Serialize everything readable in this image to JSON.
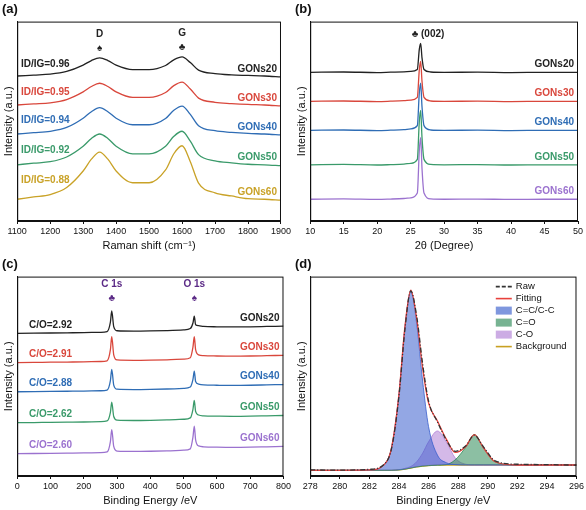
{
  "chart_data": [
    {
      "type": "line",
      "title": "(a)",
      "xlabel": "Raman shift (cm⁻¹)",
      "ylabel": "Intensity (a.u.)",
      "xlim": [
        1100,
        1900
      ],
      "xticks": [
        1100,
        1200,
        1300,
        1400,
        1500,
        1600,
        1700,
        1800,
        1900
      ],
      "ylim": [
        0,
        11
      ],
      "tick_labels": "x",
      "grid": false,
      "x": [
        1100,
        1150,
        1200,
        1250,
        1300,
        1325,
        1350,
        1375,
        1400,
        1450,
        1500,
        1550,
        1575,
        1600,
        1625,
        1650,
        1700,
        1750,
        1800,
        1850,
        1900
      ],
      "series": [
        {
          "name": "GONs20",
          "color": "#222222",
          "values": [
            8.0,
            8.05,
            8.1,
            8.25,
            8.6,
            8.85,
            9.0,
            8.85,
            8.6,
            8.35,
            8.35,
            8.58,
            8.89,
            9.05,
            8.74,
            8.32,
            8.13,
            8.06,
            8.03,
            8.0,
            7.95
          ]
        },
        {
          "name": "GONs30",
          "color": "#d9473c",
          "values": [
            6.4,
            6.46,
            6.52,
            6.7,
            7.12,
            7.42,
            7.6,
            7.42,
            7.12,
            6.82,
            6.82,
            7.09,
            7.47,
            7.66,
            7.28,
            6.78,
            6.55,
            6.48,
            6.43,
            6.4,
            6.35
          ]
        },
        {
          "name": "GONs40",
          "color": "#2f6db5",
          "values": [
            4.8,
            4.87,
            4.95,
            5.16,
            5.67,
            6.03,
            6.25,
            6.03,
            5.67,
            5.31,
            5.31,
            5.65,
            6.11,
            6.34,
            5.88,
            5.26,
            4.98,
            4.89,
            4.83,
            4.8,
            4.75
          ]
        },
        {
          "name": "GONs50",
          "color": "#3a9a6a",
          "values": [
            3.1,
            3.19,
            3.27,
            3.53,
            4.12,
            4.55,
            4.8,
            4.55,
            4.12,
            3.7,
            3.7,
            4.12,
            4.67,
            4.95,
            4.4,
            3.66,
            3.32,
            3.21,
            3.13,
            3.1,
            3.05
          ]
        },
        {
          "name": "GONs60",
          "color": "#c9a227",
          "values": [
            1.2,
            1.33,
            1.46,
            1.85,
            2.76,
            3.41,
            3.8,
            3.41,
            2.76,
            2.11,
            2.11,
            2.82,
            3.71,
            4.15,
            3.27,
            2.09,
            1.55,
            1.38,
            1.23,
            1.2,
            1.15
          ]
        }
      ],
      "annotations": [
        {
          "text": "D",
          "x": 1350,
          "y": 10.05,
          "color": "#222222"
        },
        {
          "text": "♠",
          "x": 1350,
          "y": 9.25,
          "color": "#222222"
        },
        {
          "text": "G",
          "x": 1600,
          "y": 10.1,
          "color": "#222222"
        },
        {
          "text": "♣",
          "x": 1600,
          "y": 9.3,
          "color": "#222222"
        },
        {
          "text": "ID/IG=0.96",
          "x": 1185,
          "y": 8.35,
          "color": "#222222"
        },
        {
          "text": "ID/IG=0.95",
          "x": 1185,
          "y": 6.8,
          "color": "#d9473c"
        },
        {
          "text": "ID/IG=0.94",
          "x": 1185,
          "y": 5.3,
          "color": "#2f6db5"
        },
        {
          "text": "ID/IG=0.92",
          "x": 1185,
          "y": 3.65,
          "color": "#3a9a6a"
        },
        {
          "text": "ID/IG=0.88",
          "x": 1185,
          "y": 1.95,
          "color": "#c9a227"
        }
      ]
    },
    {
      "type": "line",
      "title": "(b)",
      "xlabel": "2θ (Degree)",
      "ylabel": "Intensity (a.u.)",
      "xlim": [
        10,
        50
      ],
      "xticks": [
        10,
        15,
        20,
        25,
        30,
        35,
        40,
        45,
        50
      ],
      "ylim": [
        0,
        11
      ],
      "tick_labels": "x",
      "grid": false,
      "x": [
        10,
        15,
        20,
        22,
        24,
        25,
        26,
        26.3,
        26.5,
        26.7,
        27,
        28,
        30,
        35,
        40,
        45,
        50
      ],
      "series": [
        {
          "name": "GONs20",
          "color": "#222222",
          "values": [
            8.2,
            8.22,
            8.19,
            8.21,
            8.23,
            8.25,
            8.36,
            9.48,
            9.8,
            9.0,
            8.36,
            8.22,
            8.2,
            8.21,
            8.19,
            8.2,
            8.2
          ]
        },
        {
          "name": "GONs30",
          "color": "#d9473c",
          "values": [
            6.6,
            6.62,
            6.59,
            6.61,
            6.64,
            6.67,
            6.82,
            8.36,
            8.8,
            7.7,
            6.82,
            6.62,
            6.6,
            6.61,
            6.59,
            6.6,
            6.6
          ]
        },
        {
          "name": "GONs40",
          "color": "#2f6db5",
          "values": [
            5.0,
            5.02,
            4.99,
            5.01,
            5.04,
            5.08,
            5.26,
            7.08,
            7.6,
            6.3,
            5.26,
            5.02,
            5.0,
            5.01,
            4.99,
            5.0,
            5.0
          ]
        },
        {
          "name": "GONs50",
          "color": "#3a9a6a",
          "values": [
            3.1,
            3.12,
            3.09,
            3.11,
            3.14,
            3.18,
            3.4,
            5.5,
            6.1,
            4.6,
            3.4,
            3.12,
            3.1,
            3.11,
            3.09,
            3.1,
            3.1
          ]
        },
        {
          "name": "GONs60",
          "color": "#9b72cf",
          "values": [
            1.2,
            1.22,
            1.19,
            1.21,
            1.24,
            1.28,
            1.54,
            3.92,
            4.6,
            2.9,
            1.54,
            1.22,
            1.2,
            1.21,
            1.19,
            1.2,
            1.2
          ]
        }
      ],
      "annotations": [
        {
          "text": "♣ (002)",
          "x": 27.6,
          "y": 10.0,
          "color": "#222222"
        }
      ]
    },
    {
      "type": "line",
      "title": "(c)",
      "xlabel": "Binding Energy /eV",
      "ylabel": "Intensity (a.u.)",
      "xlim": [
        0,
        800
      ],
      "xticks": [
        0,
        100,
        200,
        300,
        400,
        500,
        600,
        700,
        800
      ],
      "ylim": [
        0,
        11.6
      ],
      "tick_labels": "x",
      "grid": false,
      "x": [
        0,
        50,
        100,
        150,
        200,
        250,
        270,
        280,
        284,
        290,
        300,
        350,
        400,
        450,
        500,
        520,
        528,
        532,
        536,
        545,
        560,
        600,
        650,
        700,
        750,
        800
      ],
      "series": [
        {
          "name": "GONs20",
          "color": "#222222",
          "values": [
            8.3,
            8.31,
            8.32,
            8.33,
            8.34,
            8.36,
            8.4,
            8.95,
            9.6,
            8.69,
            8.45,
            8.43,
            8.44,
            8.46,
            8.5,
            8.58,
            8.9,
            9.3,
            8.8,
            8.75,
            8.7,
            8.68,
            8.67,
            8.68,
            8.7,
            8.72
          ]
        },
        {
          "name": "GONs30",
          "color": "#d9473c",
          "values": [
            6.6,
            6.61,
            6.62,
            6.63,
            6.64,
            6.66,
            6.7,
            7.35,
            8.1,
            7.05,
            6.75,
            6.73,
            6.74,
            6.76,
            6.8,
            6.88,
            7.5,
            8.1,
            7.35,
            7.05,
            7.0,
            6.98,
            6.97,
            6.98,
            7.0,
            7.02
          ]
        },
        {
          "name": "GONs40",
          "color": "#2f6db5",
          "values": [
            4.9,
            4.91,
            4.92,
            4.93,
            4.94,
            4.96,
            5.0,
            5.55,
            6.2,
            5.29,
            5.05,
            5.03,
            5.04,
            5.06,
            5.1,
            5.18,
            5.62,
            6.1,
            5.5,
            5.35,
            5.3,
            5.28,
            5.27,
            5.28,
            5.3,
            5.32
          ]
        },
        {
          "name": "GONs50",
          "color": "#3a9a6a",
          "values": [
            3.1,
            3.11,
            3.12,
            3.13,
            3.14,
            3.16,
            3.2,
            3.7,
            4.3,
            3.46,
            3.25,
            3.23,
            3.24,
            3.26,
            3.3,
            3.38,
            3.88,
            4.4,
            3.75,
            3.55,
            3.5,
            3.48,
            3.47,
            3.48,
            3.5,
            3.52
          ]
        },
        {
          "name": "GONs60",
          "color": "#9b72cf",
          "values": [
            1.3,
            1.31,
            1.32,
            1.33,
            1.34,
            1.36,
            1.4,
            2.0,
            2.7,
            1.72,
            1.45,
            1.43,
            1.44,
            1.46,
            1.5,
            1.58,
            2.26,
            2.9,
            2.1,
            1.75,
            1.7,
            1.68,
            1.67,
            1.68,
            1.7,
            1.72
          ]
        }
      ],
      "annotations": [
        {
          "text": "C 1s",
          "x": 284,
          "y": 10.85,
          "color": "#5b2a86"
        },
        {
          "text": "♣",
          "x": 284,
          "y": 10.05,
          "color": "#5b2a86"
        },
        {
          "text": "O 1s",
          "x": 532,
          "y": 10.85,
          "color": "#5b2a86"
        },
        {
          "text": "♠",
          "x": 532,
          "y": 10.05,
          "color": "#5b2a86"
        },
        {
          "text": "C/O=2.92",
          "x": 100,
          "y": 8.5,
          "color": "#222222"
        },
        {
          "text": "C/O=2.91",
          "x": 100,
          "y": 6.8,
          "color": "#d9473c"
        },
        {
          "text": "C/O=2.88",
          "x": 100,
          "y": 5.1,
          "color": "#2f6db5"
        },
        {
          "text": "C/O=2.62",
          "x": 100,
          "y": 3.3,
          "color": "#3a9a6a"
        },
        {
          "text": "C/O=2.60",
          "x": 100,
          "y": 1.5,
          "color": "#9b72cf"
        }
      ]
    },
    {
      "type": "line",
      "title": "(d)",
      "xlabel": "Binding Energy /eV",
      "ylabel": "Intensity (a.u.)",
      "xlim": [
        278,
        296
      ],
      "xticks": [
        278,
        280,
        282,
        284,
        286,
        288,
        290,
        292,
        294,
        296
      ],
      "ylim": [
        0,
        10.5
      ],
      "tick_labels": "x",
      "grid": false,
      "legend": "upper right",
      "x": [
        278,
        280,
        282,
        283,
        283.5,
        284,
        284.4,
        284.8,
        285.2,
        285.6,
        286,
        286.6,
        287.2,
        287.8,
        288.5,
        289.1,
        289.7,
        290.5,
        292,
        294,
        296
      ],
      "series": [
        {
          "name": "Raw",
          "color": "#333333",
          "type": "line",
          "line_style": "dashed",
          "values": [
            0.32,
            0.31,
            0.35,
            0.62,
            1.45,
            4.2,
            7.7,
            9.75,
            8.4,
            5.9,
            3.95,
            2.85,
            1.9,
            1.3,
            1.58,
            2.15,
            1.55,
            0.8,
            0.62,
            0.6,
            0.57
          ]
        },
        {
          "name": "Fitting",
          "color": "#e8413c",
          "type": "line",
          "values": [
            0.3,
            0.3,
            0.32,
            0.6,
            1.5,
            4.31,
            7.84,
            9.78,
            8.27,
            5.68,
            3.85,
            2.9,
            1.94,
            1.24,
            1.54,
            2.18,
            1.5,
            0.75,
            0.58,
            0.58,
            0.58
          ]
        },
        {
          "name": "C=C/C-C",
          "color": "#3a5fcd",
          "type": "area",
          "values": [
            0.3,
            0.3,
            0.32,
            0.6,
            1.5,
            4.3,
            7.8,
            9.7,
            8.0,
            5.0,
            2.6,
            1.1,
            0.7,
            0.6,
            0.58,
            0.58,
            0.58,
            0.58,
            0.58,
            0.58,
            0.58
          ]
        },
        {
          "name": "C=O",
          "color": "#2e8b57",
          "type": "area",
          "values": [
            0.3,
            0.3,
            0.3,
            0.3,
            0.3,
            0.32,
            0.36,
            0.42,
            0.48,
            0.52,
            0.55,
            0.57,
            0.6,
            0.85,
            1.5,
            2.18,
            1.5,
            0.75,
            0.58,
            0.58,
            0.58
          ]
        },
        {
          "name": "C-O",
          "color": "#b07fd6",
          "type": "area",
          "values": [
            0.3,
            0.3,
            0.3,
            0.3,
            0.3,
            0.33,
            0.4,
            0.5,
            0.75,
            1.2,
            1.8,
            2.37,
            1.8,
            0.95,
            0.62,
            0.58,
            0.58,
            0.58,
            0.58,
            0.58,
            0.58
          ]
        },
        {
          "name": "Background",
          "color": "#c8a022",
          "type": "line",
          "values": [
            0.3,
            0.3,
            0.3,
            0.3,
            0.3,
            0.32,
            0.36,
            0.42,
            0.48,
            0.52,
            0.55,
            0.57,
            0.58,
            0.58,
            0.58,
            0.58,
            0.58,
            0.58,
            0.58,
            0.58,
            0.58
          ]
        }
      ]
    }
  ]
}
